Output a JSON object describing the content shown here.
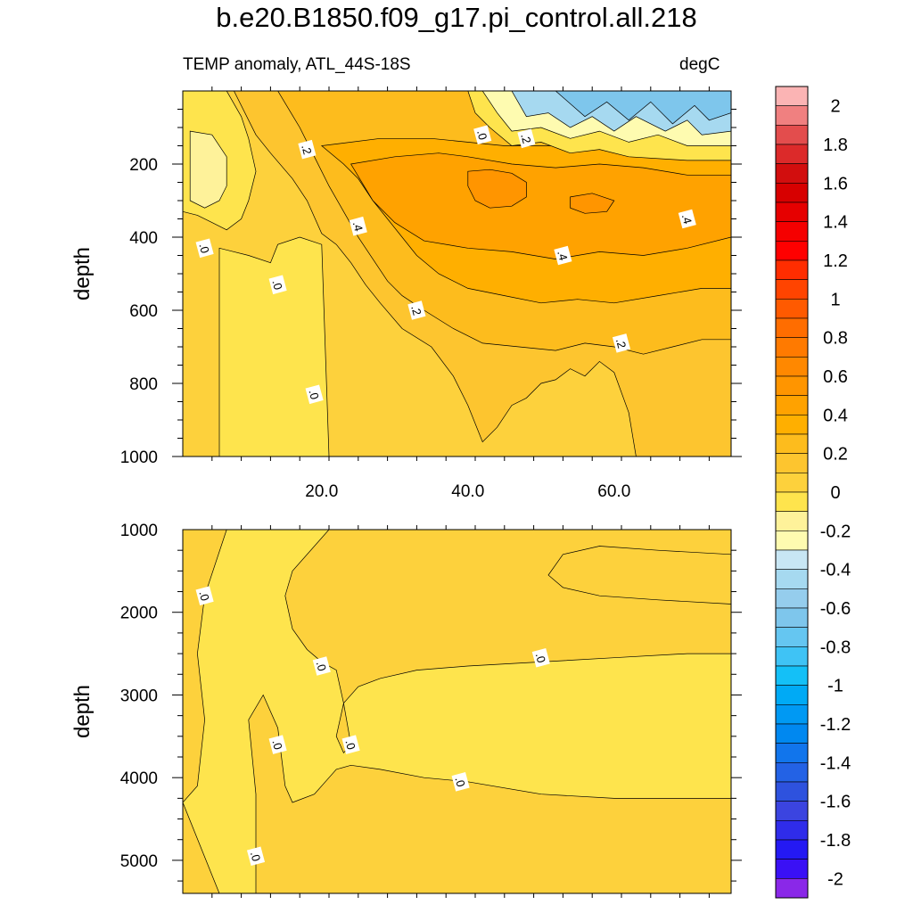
{
  "title": "b.e20.B1850.f09_g17.pi_control.all.218",
  "subtitle_left": "TEMP anomaly, ATL_44S-18S",
  "subtitle_right": "degC",
  "chart_data": [
    {
      "type": "heatmap",
      "panel": "upper",
      "variable": "TEMP anomaly",
      "units": "degC",
      "ylabel": "depth",
      "xlabel": "",
      "y_reversed": true,
      "xlim": [
        1,
        76
      ],
      "ylim": [
        1000,
        0
      ],
      "x_ticks": [
        20,
        40,
        60
      ],
      "x_tick_labels": [
        "20.0",
        "40.0",
        "60.0"
      ],
      "y_ticks": [
        200,
        400,
        600,
        800,
        1000
      ],
      "y_tick_labels": [
        "200",
        "400",
        "600",
        "800",
        "1000"
      ],
      "contour_interval": 0.05,
      "contour_labels": [
        {
          "x": 4,
          "y": 430,
          "text": ".0"
        },
        {
          "x": 14,
          "y": 530,
          "text": ".0"
        },
        {
          "x": 19,
          "y": 830,
          "text": ".0"
        },
        {
          "x": 18,
          "y": 160,
          "text": ".2"
        },
        {
          "x": 25,
          "y": 370,
          "text": ".4"
        },
        {
          "x": 33,
          "y": 600,
          "text": ".2"
        },
        {
          "x": 42,
          "y": 120,
          "text": ".0"
        },
        {
          "x": 48,
          "y": 130,
          "text": ".2"
        },
        {
          "x": 53,
          "y": 450,
          "text": ".4"
        },
        {
          "x": 61,
          "y": 690,
          "text": ".2"
        },
        {
          "x": 70,
          "y": 350,
          "text": ".4"
        }
      ],
      "features": [
        {
          "region": "western column x 6-21, depth 430-1000",
          "value": -0.05
        },
        {
          "region": "west surface x 1-8, depth 0-350",
          "value": -0.1
        },
        {
          "region": "core x 40-48, depth 220-320",
          "value": 0.55
        },
        {
          "region": "eastern surface x 41-76, depth 0-170",
          "value": -0.5
        }
      ]
    },
    {
      "type": "heatmap",
      "panel": "lower",
      "variable": "TEMP anomaly",
      "units": "degC",
      "ylabel": "depth",
      "xlabel": "",
      "y_reversed": true,
      "xlim": [
        1,
        76
      ],
      "ylim": [
        5400,
        1000
      ],
      "x_ticks": [
        20,
        40,
        60
      ],
      "y_ticks": [
        1000,
        2000,
        3000,
        4000,
        5000
      ],
      "y_tick_labels": [
        "1000",
        "2000",
        "3000",
        "4000",
        "5000"
      ],
      "contour_interval": 0.05,
      "contour_labels": [
        {
          "x": 4,
          "y": 1800,
          "text": ".0"
        },
        {
          "x": 20,
          "y": 2650,
          "text": ".0"
        },
        {
          "x": 50,
          "y": 2550,
          "text": ".0"
        },
        {
          "x": 14,
          "y": 3600,
          "text": ".0"
        },
        {
          "x": 24,
          "y": 3600,
          "text": ".0"
        },
        {
          "x": 39,
          "y": 4050,
          "text": ".0"
        },
        {
          "x": 11,
          "y": 4950,
          "text": ".0"
        }
      ],
      "features": [
        {
          "region": "western band x 4-22, depth 1000-5400",
          "value": -0.05
        },
        {
          "region": "eastern tongue x 24-76, depth 2500-4300",
          "value": -0.05
        },
        {
          "region": "north-east x 52-76, depth 1300-1900",
          "value": 0.05
        }
      ]
    }
  ],
  "colorbar": {
    "min": -2.1,
    "max": 2.1,
    "step": 0.1,
    "labels": [
      "2",
      "1.8",
      "1.6",
      "1.4",
      "1.2",
      "1",
      "0.8",
      "0.6",
      "0.4",
      "0.2",
      "0",
      "-0.2",
      "-0.4",
      "-0.6",
      "-0.8",
      "-1",
      "-1.2",
      "-1.4",
      "-1.6",
      "-1.8",
      "-2"
    ],
    "colors_top_to_bottom": [
      "#fbb4b4",
      "#f08080",
      "#e34d4d",
      "#dc2a2a",
      "#d20e0e",
      "#d70000",
      "#e60000",
      "#f50000",
      "#ff0000",
      "#ff2d00",
      "#ff4400",
      "#ff5a00",
      "#ff6d00",
      "#ff7a00",
      "#ff8800",
      "#ff9500",
      "#ffa200",
      "#ffaf00",
      "#fdbc1d",
      "#fdc52f",
      "#fdd13c",
      "#fee44d",
      "#fef29a",
      "#fefbb0",
      "#c8e6f4",
      "#a6d9f0",
      "#95cded",
      "#7ec6ec",
      "#65c6f1",
      "#3fc3f5",
      "#14c0f7",
      "#00aaf5",
      "#0099f3",
      "#0088f0",
      "#1175ec",
      "#2362e5",
      "#2e52de",
      "#3b44e0",
      "#2f2cea",
      "#2419f3",
      "#3a10f5",
      "#8a28e8"
    ]
  },
  "colors": {
    "zero_pos": "#fefbb0",
    "zero_neg": "#c8e6f4",
    "contour": "#000000"
  }
}
